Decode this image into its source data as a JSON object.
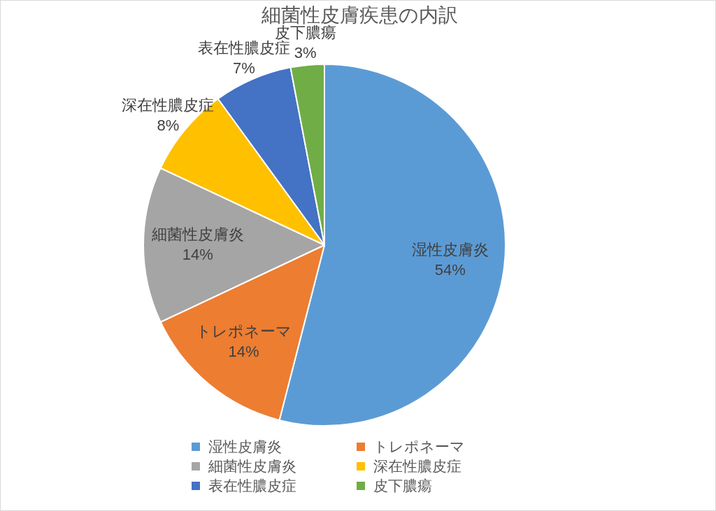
{
  "chart_data": {
    "type": "pie",
    "title": "細菌性皮膚疾患の内訳",
    "categories": [
      "湿性皮膚炎",
      "トレポネーマ",
      "細菌性皮膚炎",
      "深在性膿皮症",
      "表在性膿皮症",
      "皮下膿瘍"
    ],
    "values": [
      54,
      14,
      14,
      8,
      7,
      3
    ],
    "value_labels": [
      "54%",
      "14%",
      "14%",
      "8%",
      "7%",
      "3%"
    ],
    "colors": [
      "#5b9bd5",
      "#ed7d31",
      "#a5a5a5",
      "#ffc000",
      "#4472c4",
      "#70ad47"
    ],
    "legend": "bottom"
  }
}
